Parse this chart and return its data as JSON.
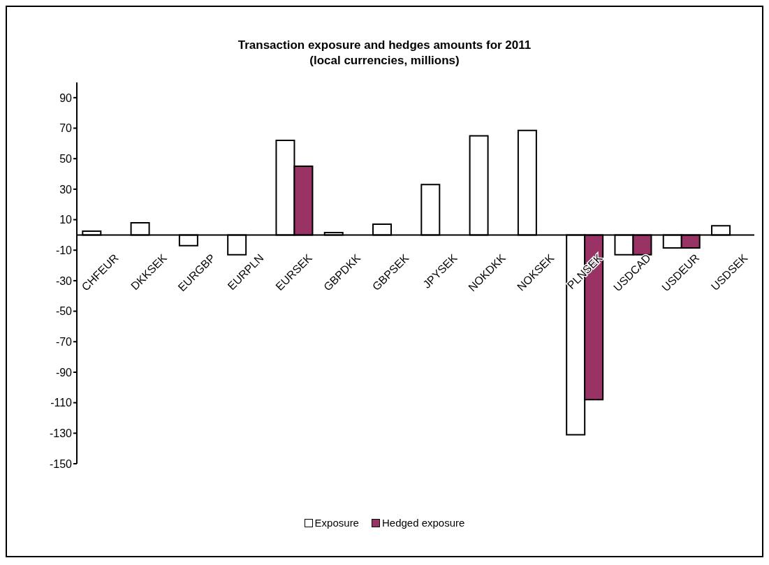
{
  "chart_data": {
    "type": "bar",
    "title": "Transaction exposure and hedges amounts for 2011",
    "subtitle": "(local currencies, millions)",
    "categories": [
      "CHFEUR",
      "DKKSEK",
      "EURGBP",
      "EURPLN",
      "EURSEK",
      "GBPDKK",
      "GBPSEK",
      "JPYSEK",
      "NOKDKK",
      "NOKSEK",
      "PLNSEK",
      "USDCAD",
      "USDEUR",
      "USDSEK"
    ],
    "series": [
      {
        "name": "Exposure",
        "color": "#ffffff",
        "values": [
          2.5,
          8,
          -7,
          -13,
          62,
          1.5,
          7,
          33,
          65,
          68.5,
          -131,
          -13,
          -8.5,
          6
        ]
      },
      {
        "name": "Hedged exposure",
        "color": "#993366",
        "values": [
          null,
          null,
          null,
          null,
          45,
          null,
          null,
          null,
          null,
          null,
          -108,
          -13,
          -8.5,
          null
        ]
      }
    ],
    "ylim": [
      -150,
      100
    ],
    "yticks": [
      -150,
      -130,
      -110,
      -90,
      -70,
      -50,
      -30,
      -10,
      10,
      30,
      50,
      70,
      90
    ],
    "legend": "bottom"
  }
}
